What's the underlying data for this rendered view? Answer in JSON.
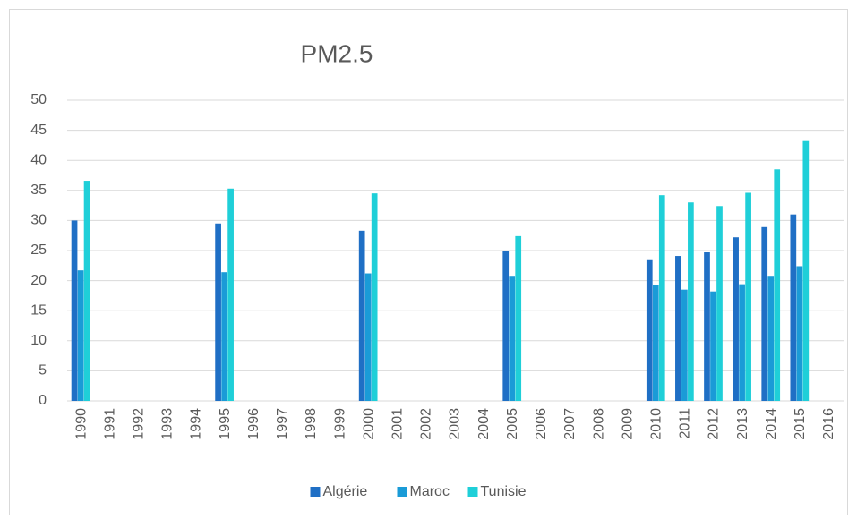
{
  "chart_data": {
    "type": "bar",
    "title": "PM2.5",
    "categories": [
      "1990",
      "1991",
      "1992",
      "1993",
      "1994",
      "1995",
      "1996",
      "1997",
      "1998",
      "1999",
      "2000",
      "2001",
      "2002",
      "2003",
      "2004",
      "2005",
      "2006",
      "2007",
      "2008",
      "2009",
      "2010",
      "2011",
      "2012",
      "2013",
      "2014",
      "2015",
      "2016"
    ],
    "series": [
      {
        "name": "Algérie",
        "color": "#1f6fc5",
        "values": [
          30,
          null,
          null,
          null,
          null,
          29.5,
          null,
          null,
          null,
          null,
          28.3,
          null,
          null,
          null,
          null,
          25,
          null,
          null,
          null,
          null,
          23.4,
          24.1,
          24.7,
          27.2,
          28.9,
          31,
          null
        ]
      },
      {
        "name": "Maroc",
        "color": "#1a9bd7",
        "values": [
          21.7,
          null,
          null,
          null,
          null,
          21.4,
          null,
          null,
          null,
          null,
          21.2,
          null,
          null,
          null,
          null,
          20.8,
          null,
          null,
          null,
          null,
          19.3,
          18.5,
          18.2,
          19.4,
          20.8,
          22.4,
          null
        ]
      },
      {
        "name": "Tunisie",
        "color": "#1fcfd8",
        "values": [
          36.6,
          null,
          null,
          null,
          null,
          35.3,
          null,
          null,
          null,
          null,
          34.5,
          null,
          null,
          null,
          null,
          27.4,
          null,
          null,
          null,
          null,
          34.2,
          33,
          32.4,
          34.6,
          38.5,
          43.2,
          null
        ]
      }
    ],
    "ylim": [
      0,
      50
    ],
    "yticks": [
      0,
      5,
      10,
      15,
      20,
      25,
      30,
      35,
      40,
      45,
      50
    ],
    "grid": true,
    "legend": "bottom"
  }
}
